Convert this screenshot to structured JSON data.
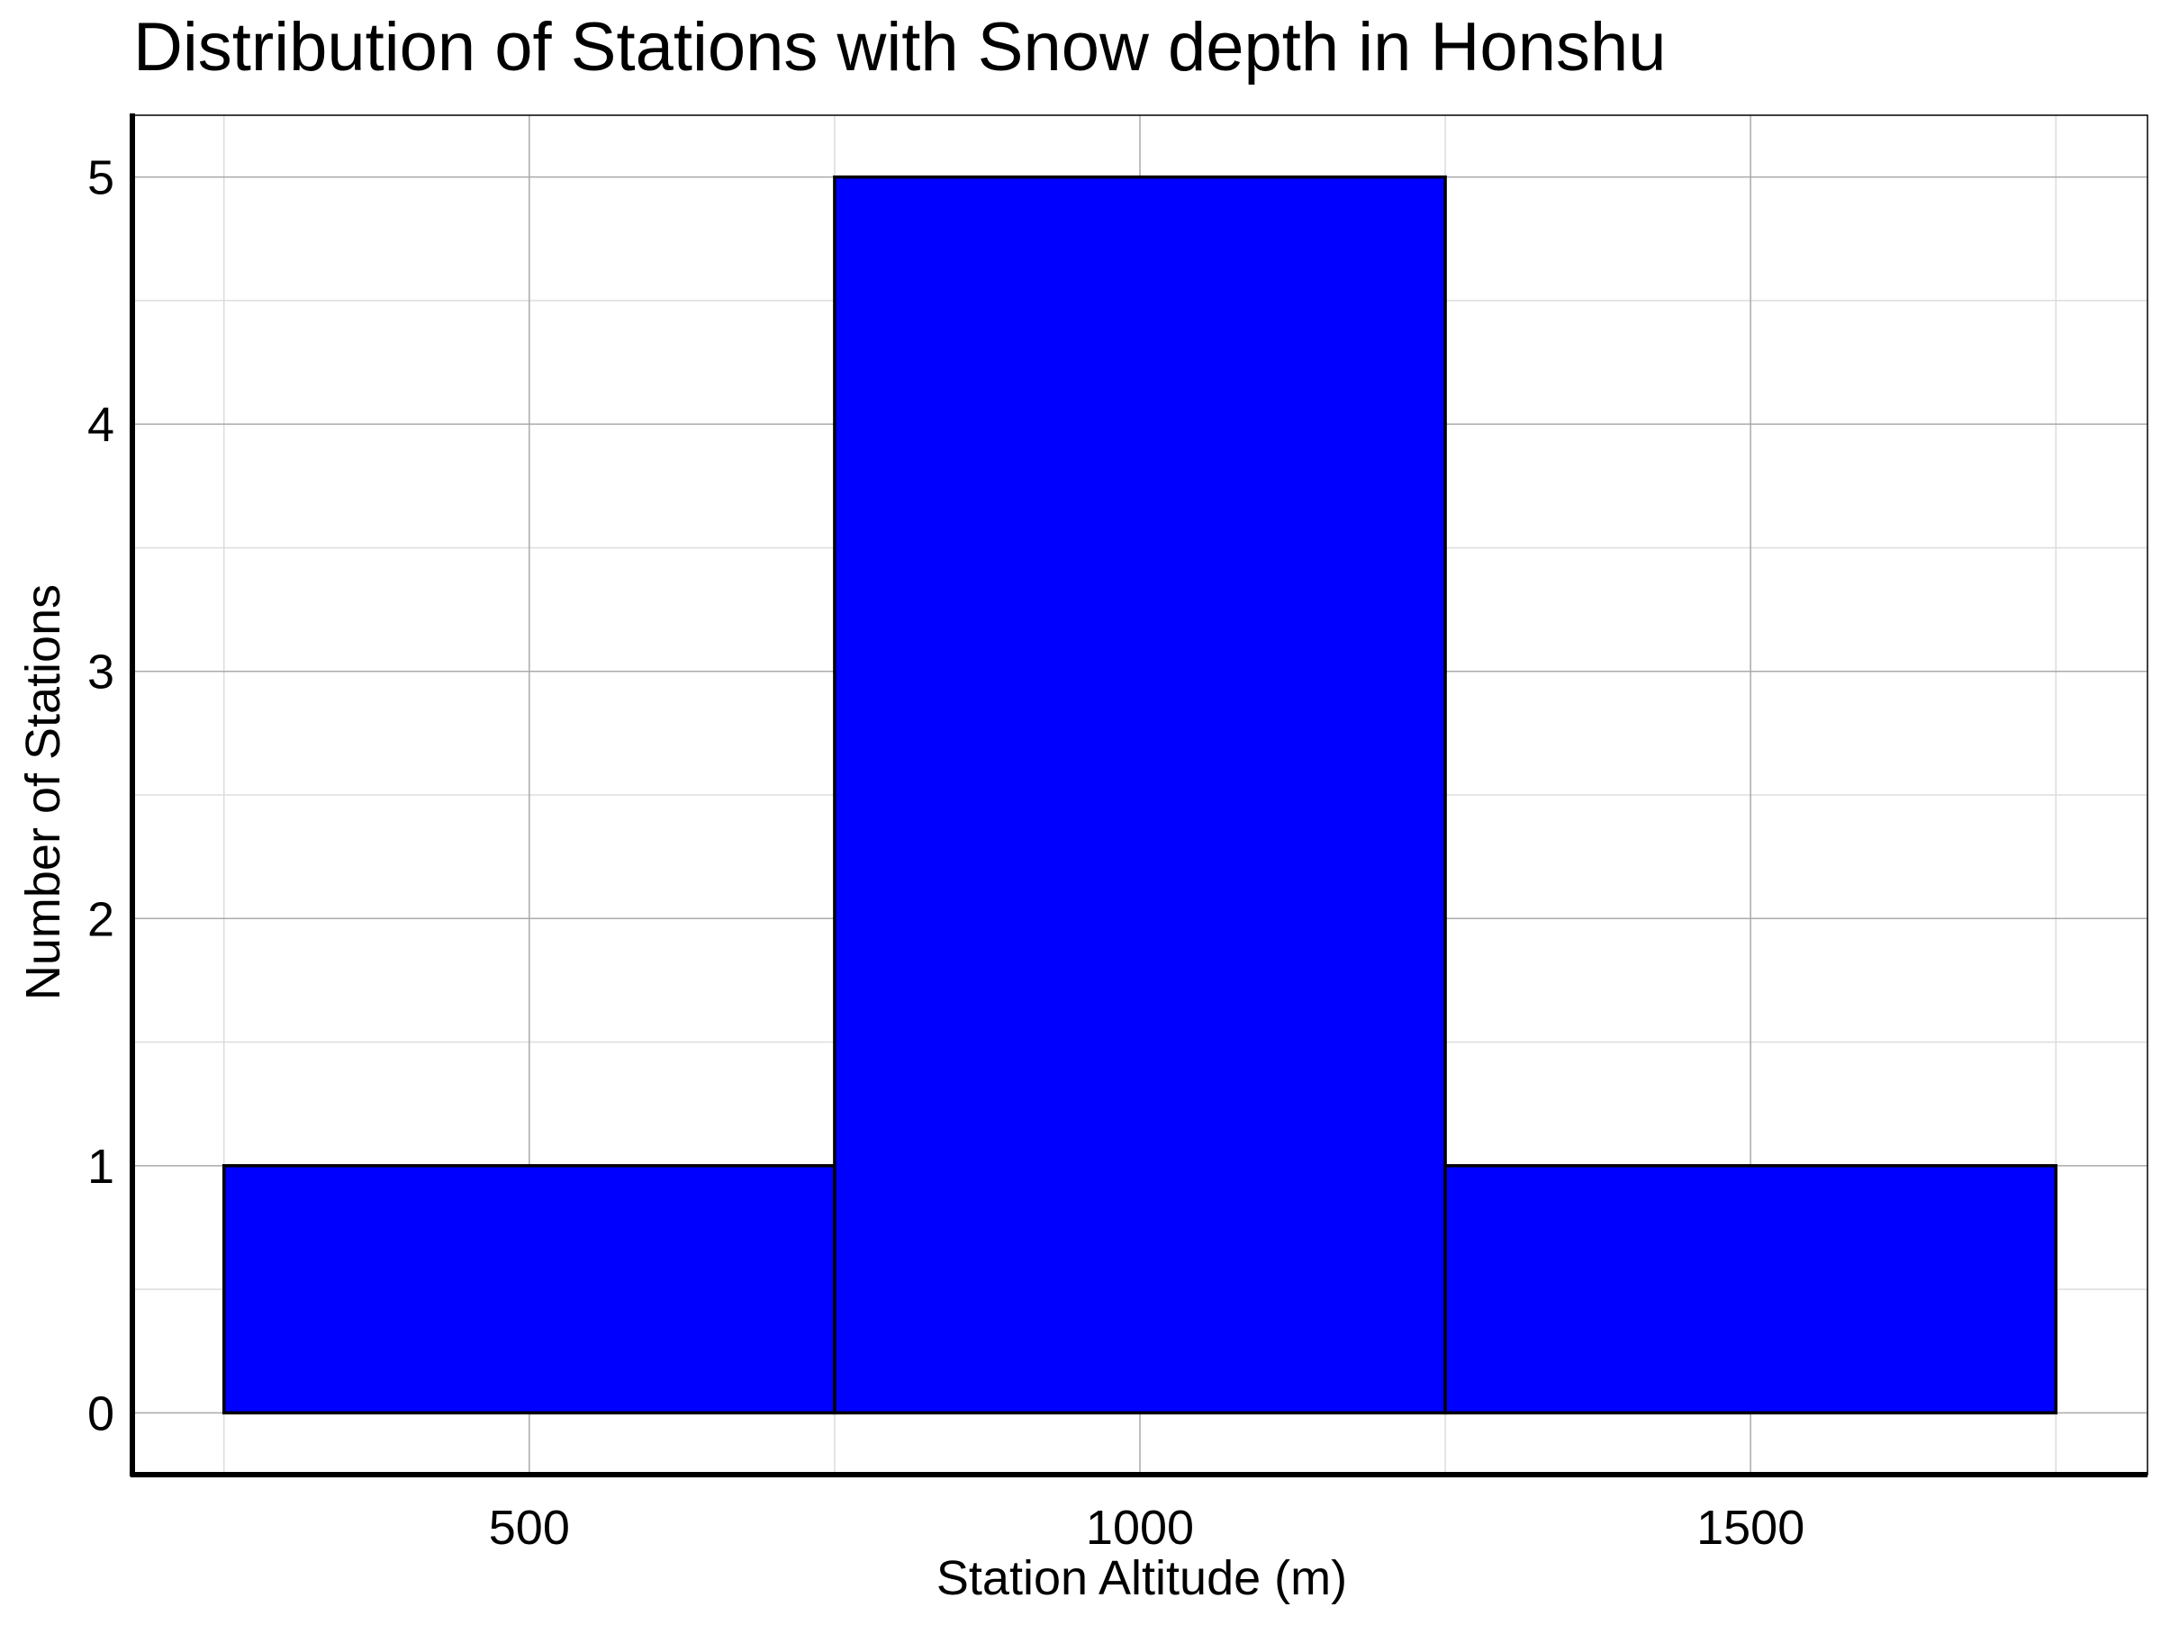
{
  "chart_data": {
    "type": "bar",
    "subtype": "histogram",
    "title": "Distribution of Stations with Snow depth in Honshu",
    "xlabel": "Station Altitude (m)",
    "ylabel": "Number of Stations",
    "bins": [
      {
        "start": 250,
        "end": 750,
        "count": 1
      },
      {
        "start": 750,
        "end": 1250,
        "count": 5
      },
      {
        "start": 1250,
        "end": 1750,
        "count": 1
      }
    ],
    "xlim": [
      175,
      1825
    ],
    "ylim": [
      -0.25,
      5.25
    ],
    "x_ticks": [
      500,
      1000,
      1500
    ],
    "x_tick_labels": [
      "500",
      "1000",
      "1500"
    ],
    "y_ticks": [
      0,
      1,
      2,
      3,
      4,
      5
    ],
    "y_tick_labels": [
      "0",
      "1",
      "2",
      "3",
      "4",
      "5"
    ],
    "x_minor_ticks": [
      250,
      750,
      1250,
      1750
    ],
    "y_minor_ticks": [
      0.5,
      1.5,
      2.5,
      3.5,
      4.5
    ],
    "grid": true,
    "bar_color": "#0000ff",
    "bar_edge_color": "#000000",
    "major_grid_color": "#aaaaaa",
    "minor_grid_color": "#dddddd"
  }
}
